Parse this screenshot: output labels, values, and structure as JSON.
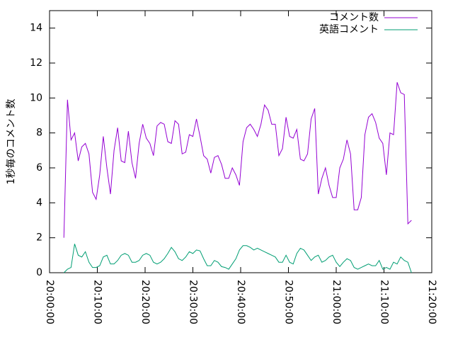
{
  "chart_data": {
    "type": "line",
    "y_label": "1秒毎のコメント数",
    "x": [
      "20:03:00",
      "20:03:45",
      "20:04:30",
      "20:05:15",
      "20:06:00",
      "20:06:45",
      "20:07:30",
      "20:08:15",
      "20:09:00",
      "20:09:45",
      "20:10:30",
      "20:11:15",
      "20:12:00",
      "20:12:45",
      "20:13:30",
      "20:14:15",
      "20:15:00",
      "20:15:45",
      "20:16:30",
      "20:17:15",
      "20:18:00",
      "20:18:45",
      "20:19:30",
      "20:20:15",
      "20:21:00",
      "20:21:45",
      "20:22:30",
      "20:23:15",
      "20:24:00",
      "20:24:45",
      "20:25:30",
      "20:26:15",
      "20:27:00",
      "20:27:45",
      "20:28:30",
      "20:29:15",
      "20:30:00",
      "20:30:45",
      "20:31:30",
      "20:32:15",
      "20:33:00",
      "20:33:45",
      "20:34:30",
      "20:35:15",
      "20:36:00",
      "20:36:45",
      "20:37:30",
      "20:38:15",
      "20:39:00",
      "20:39:45",
      "20:40:30",
      "20:41:15",
      "20:42:00",
      "20:42:45",
      "20:43:30",
      "20:44:15",
      "20:45:00",
      "20:45:45",
      "20:46:30",
      "20:47:15",
      "20:48:00",
      "20:48:45",
      "20:49:30",
      "20:50:15",
      "20:51:00",
      "20:51:45",
      "20:52:30",
      "20:53:15",
      "20:54:00",
      "20:54:45",
      "20:55:30",
      "20:56:15",
      "20:57:00",
      "20:57:45",
      "20:58:30",
      "20:59:15",
      "21:00:00",
      "21:00:45",
      "21:01:30",
      "21:02:15",
      "21:03:00",
      "21:03:45",
      "21:04:30",
      "21:05:15",
      "21:06:00",
      "21:06:45",
      "21:07:30",
      "21:08:15",
      "21:09:00",
      "21:09:45",
      "21:10:30",
      "21:11:15",
      "21:12:00",
      "21:12:45",
      "21:13:30",
      "21:14:15",
      "21:15:00",
      "21:15:45"
    ],
    "series": [
      {
        "name": "コメント数",
        "color": "#9400d3",
        "values": [
          2.0,
          9.9,
          7.6,
          8.0,
          6.4,
          7.2,
          7.4,
          6.8,
          4.6,
          4.2,
          5.6,
          7.8,
          6.0,
          4.5,
          7.0,
          8.3,
          6.4,
          6.3,
          8.1,
          6.3,
          5.4,
          7.4,
          8.5,
          7.7,
          7.4,
          6.7,
          8.4,
          8.6,
          8.5,
          7.5,
          7.4,
          8.7,
          8.5,
          6.8,
          6.9,
          7.9,
          7.8,
          8.8,
          7.8,
          6.7,
          6.5,
          5.7,
          6.6,
          6.7,
          6.2,
          5.4,
          5.4,
          6.0,
          5.6,
          5.0,
          7.5,
          8.3,
          8.5,
          8.2,
          7.8,
          8.5,
          9.6,
          9.3,
          8.5,
          8.5,
          6.7,
          7.1,
          8.9,
          7.8,
          7.7,
          8.2,
          6.5,
          6.4,
          6.8,
          8.8,
          9.4,
          4.5,
          5.4,
          6.0,
          5.0,
          4.3,
          4.3,
          6.0,
          6.5,
          7.6,
          6.8,
          3.6,
          3.6,
          4.3,
          7.9,
          8.9,
          9.1,
          8.6,
          7.7,
          7.4,
          5.6,
          8.0,
          7.9,
          10.9,
          10.3,
          10.2,
          2.8,
          3.0
        ]
      },
      {
        "name": "英語コメント",
        "color": "#009e73",
        "values": [
          0,
          0.2,
          0.3,
          1.65,
          1.0,
          0.9,
          1.2,
          0.6,
          0.3,
          0.3,
          0.4,
          0.9,
          1.0,
          0.5,
          0.5,
          0.7,
          1.0,
          1.1,
          1.0,
          0.6,
          0.6,
          0.7,
          1.0,
          1.1,
          1.0,
          0.6,
          0.5,
          0.6,
          0.8,
          1.1,
          1.45,
          1.2,
          0.8,
          0.7,
          0.9,
          1.2,
          1.1,
          1.3,
          1.25,
          0.8,
          0.4,
          0.4,
          0.7,
          0.6,
          0.35,
          0.3,
          0.2,
          0.5,
          0.8,
          1.3,
          1.55,
          1.55,
          1.45,
          1.3,
          1.4,
          1.3,
          1.2,
          1.1,
          1.0,
          0.9,
          0.6,
          0.6,
          1.0,
          0.6,
          0.5,
          1.1,
          1.4,
          1.3,
          1.0,
          0.7,
          0.9,
          1.0,
          0.6,
          0.7,
          0.9,
          1.0,
          0.6,
          0.35,
          0.6,
          0.8,
          0.7,
          0.3,
          0.2,
          0.3,
          0.4,
          0.5,
          0.4,
          0.4,
          0.7,
          0.2,
          0.3,
          0.2,
          0.6,
          0.5,
          0.9,
          0.7,
          0.6,
          0.0
        ]
      }
    ],
    "xlim": [
      "20:00:00",
      "21:20:00"
    ],
    "xticks": [
      "20:00:00",
      "20:10:00",
      "20:20:00",
      "20:30:00",
      "20:40:00",
      "20:50:00",
      "21:00:00",
      "21:10:00",
      "21:20:00"
    ],
    "ylim": [
      0,
      15
    ],
    "yticks": [
      0,
      2,
      4,
      6,
      8,
      10,
      12,
      14
    ],
    "legend": "top-right"
  }
}
